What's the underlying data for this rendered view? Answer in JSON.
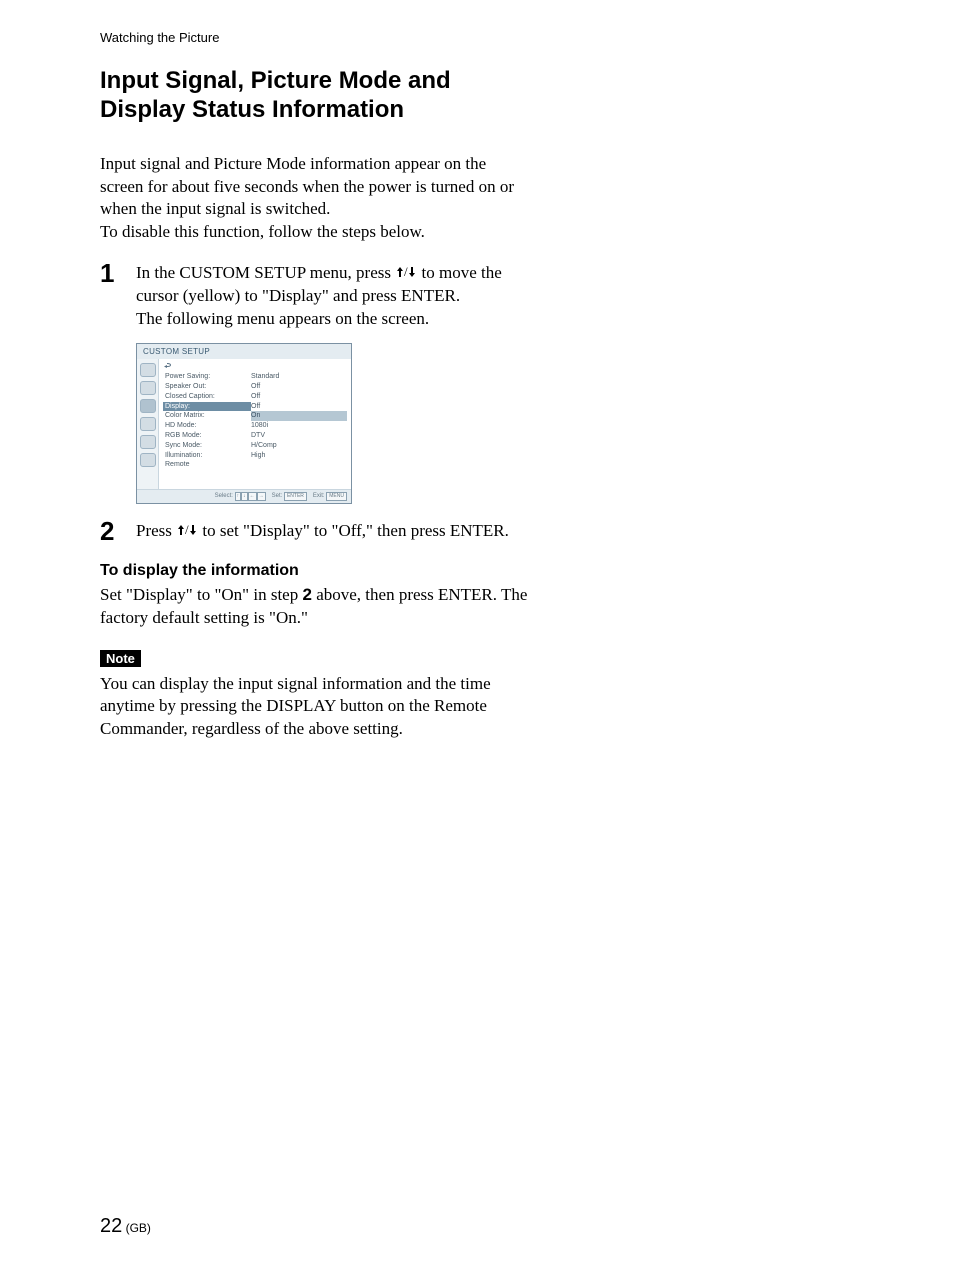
{
  "runningHeader": "Watching the Picture",
  "title_line1": "Input Signal, Picture Mode and",
  "title_line2": "Display Status Information",
  "intro": "Input signal and Picture Mode information appear on the screen for about five seconds when the power is turned on or when the input signal is switched.\nTo disable this function, follow the steps below.",
  "step1": {
    "num": "1",
    "text_before_arrows": "In the CUSTOM SETUP menu, press ",
    "text_after_arrows": " to move the cursor (yellow) to \"Display\" and press ENTER.",
    "text_line2": "The following menu appears on the screen."
  },
  "step2": {
    "num": "2",
    "text_before_arrows": "Press ",
    "text_after_arrows": " to set \"Display\" to \"Off,\" then press ENTER."
  },
  "menu": {
    "title": "CUSTOM SETUP",
    "back_symbol": "↩",
    "rows": [
      {
        "k": "Power Saving:",
        "v": "Standard",
        "mode": "normal"
      },
      {
        "k": "Speaker Out:",
        "v": "Off",
        "mode": "normal"
      },
      {
        "k": "Closed Caption:",
        "v": "Off",
        "mode": "normal"
      },
      {
        "k": "Display:",
        "v": "Off",
        "mode": "selected_key"
      },
      {
        "k": "Color Matrix:",
        "v": "On",
        "mode": "selected_val"
      },
      {
        "k": "HD Mode:",
        "v": "1080i",
        "mode": "normal"
      },
      {
        "k": "RGB Mode:",
        "v": "DTV",
        "mode": "normal"
      },
      {
        "k": "Sync Mode:",
        "v": "H/Comp",
        "mode": "normal"
      },
      {
        "k": "Illumination:",
        "v": "High",
        "mode": "normal"
      },
      {
        "k": "Remote",
        "v": "",
        "mode": "normal"
      }
    ],
    "nav": {
      "select_label": "Select:",
      "select_keys": [
        "↑",
        "↓",
        "←",
        "→"
      ],
      "set_label": "Set:",
      "set_key": "ENTER",
      "exit_label": "Exit:",
      "exit_key": "MENU"
    }
  },
  "subHeading": "To display the information",
  "subBody_before_bold": "Set \"Display\" to \"On\" in step ",
  "subBody_bold": "2",
  "subBody_after_bold": " above, then press ENTER. The factory default setting is \"On.\"",
  "noteLabel": "Note",
  "noteBody": "You can display the input signal information and the time anytime by pressing the DISPLAY button on the Remote Commander, regardless of the above setting.",
  "pageNumber": "22",
  "pageNumberSuffix": " (GB)",
  "colors": {
    "menu_border": "#7b91a3",
    "menu_header_bg": "#e4ecf1",
    "menu_header_fg": "#3a5a72",
    "menu_sidebar_bg": "#eef3f6",
    "menu_sel_bg": "#6d8da4",
    "menu_sel2_bg": "#b5c7d3"
  }
}
